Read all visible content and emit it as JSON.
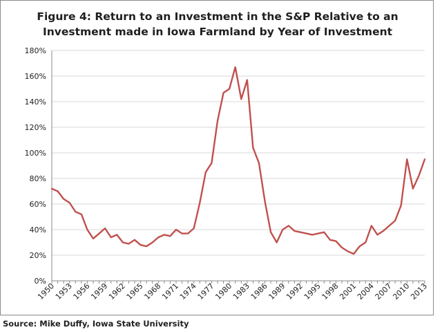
{
  "colors": {
    "line": "#c0504d",
    "grid": "#d9d9d9",
    "axis": "#8a8a8a",
    "text": "#1f1f1f"
  },
  "chart_data": {
    "type": "line",
    "title_lines": [
      "Figure 4: Return to an Investment in the S&P Relative to an",
      "Investment made in Iowa Farmland by Year of Investment"
    ],
    "xlabel": "",
    "ylabel": "",
    "ylim": [
      0,
      180
    ],
    "y_ticks": [
      "0%",
      "20%",
      "40%",
      "60%",
      "80%",
      "100%",
      "120%",
      "140%",
      "160%",
      "180%"
    ],
    "x_ticks": [
      "1950",
      "1953",
      "1956",
      "1959",
      "1962",
      "1965",
      "1968",
      "1971",
      "1974",
      "1977",
      "1980",
      "1983",
      "1986",
      "1989",
      "1992",
      "1995",
      "1998",
      "2001",
      "2004",
      "2007",
      "2010",
      "2013"
    ],
    "grid": "horizontal",
    "legend": "none",
    "x": [
      1950,
      1951,
      1952,
      1953,
      1954,
      1955,
      1956,
      1957,
      1958,
      1959,
      1960,
      1961,
      1962,
      1963,
      1964,
      1965,
      1966,
      1967,
      1968,
      1969,
      1970,
      1971,
      1972,
      1973,
      1974,
      1975,
      1976,
      1977,
      1978,
      1979,
      1980,
      1981,
      1982,
      1983,
      1984,
      1985,
      1986,
      1987,
      1988,
      1989,
      1990,
      1991,
      1992,
      1993,
      1994,
      1995,
      1996,
      1997,
      1998,
      1999,
      2000,
      2001,
      2002,
      2003,
      2004,
      2005,
      2006,
      2007,
      2008,
      2009,
      2010,
      2011,
      2012,
      2013
    ],
    "series": [
      {
        "values": [
          72,
          70,
          64,
          61,
          54,
          52,
          40,
          33,
          37,
          41,
          34,
          36,
          30,
          29,
          32,
          28,
          27,
          30,
          34,
          36,
          35,
          40,
          37,
          37,
          41,
          61,
          85,
          92,
          125,
          147,
          150,
          167,
          142,
          157,
          104,
          92,
          62,
          38,
          30,
          40,
          43,
          39,
          38,
          37,
          36,
          37,
          38,
          32,
          31,
          26,
          23,
          21,
          27,
          30,
          43,
          36,
          39,
          43,
          47,
          59,
          95,
          72,
          82,
          95
        ]
      }
    ]
  },
  "source": "Source: Mike Duffy, Iowa State University"
}
